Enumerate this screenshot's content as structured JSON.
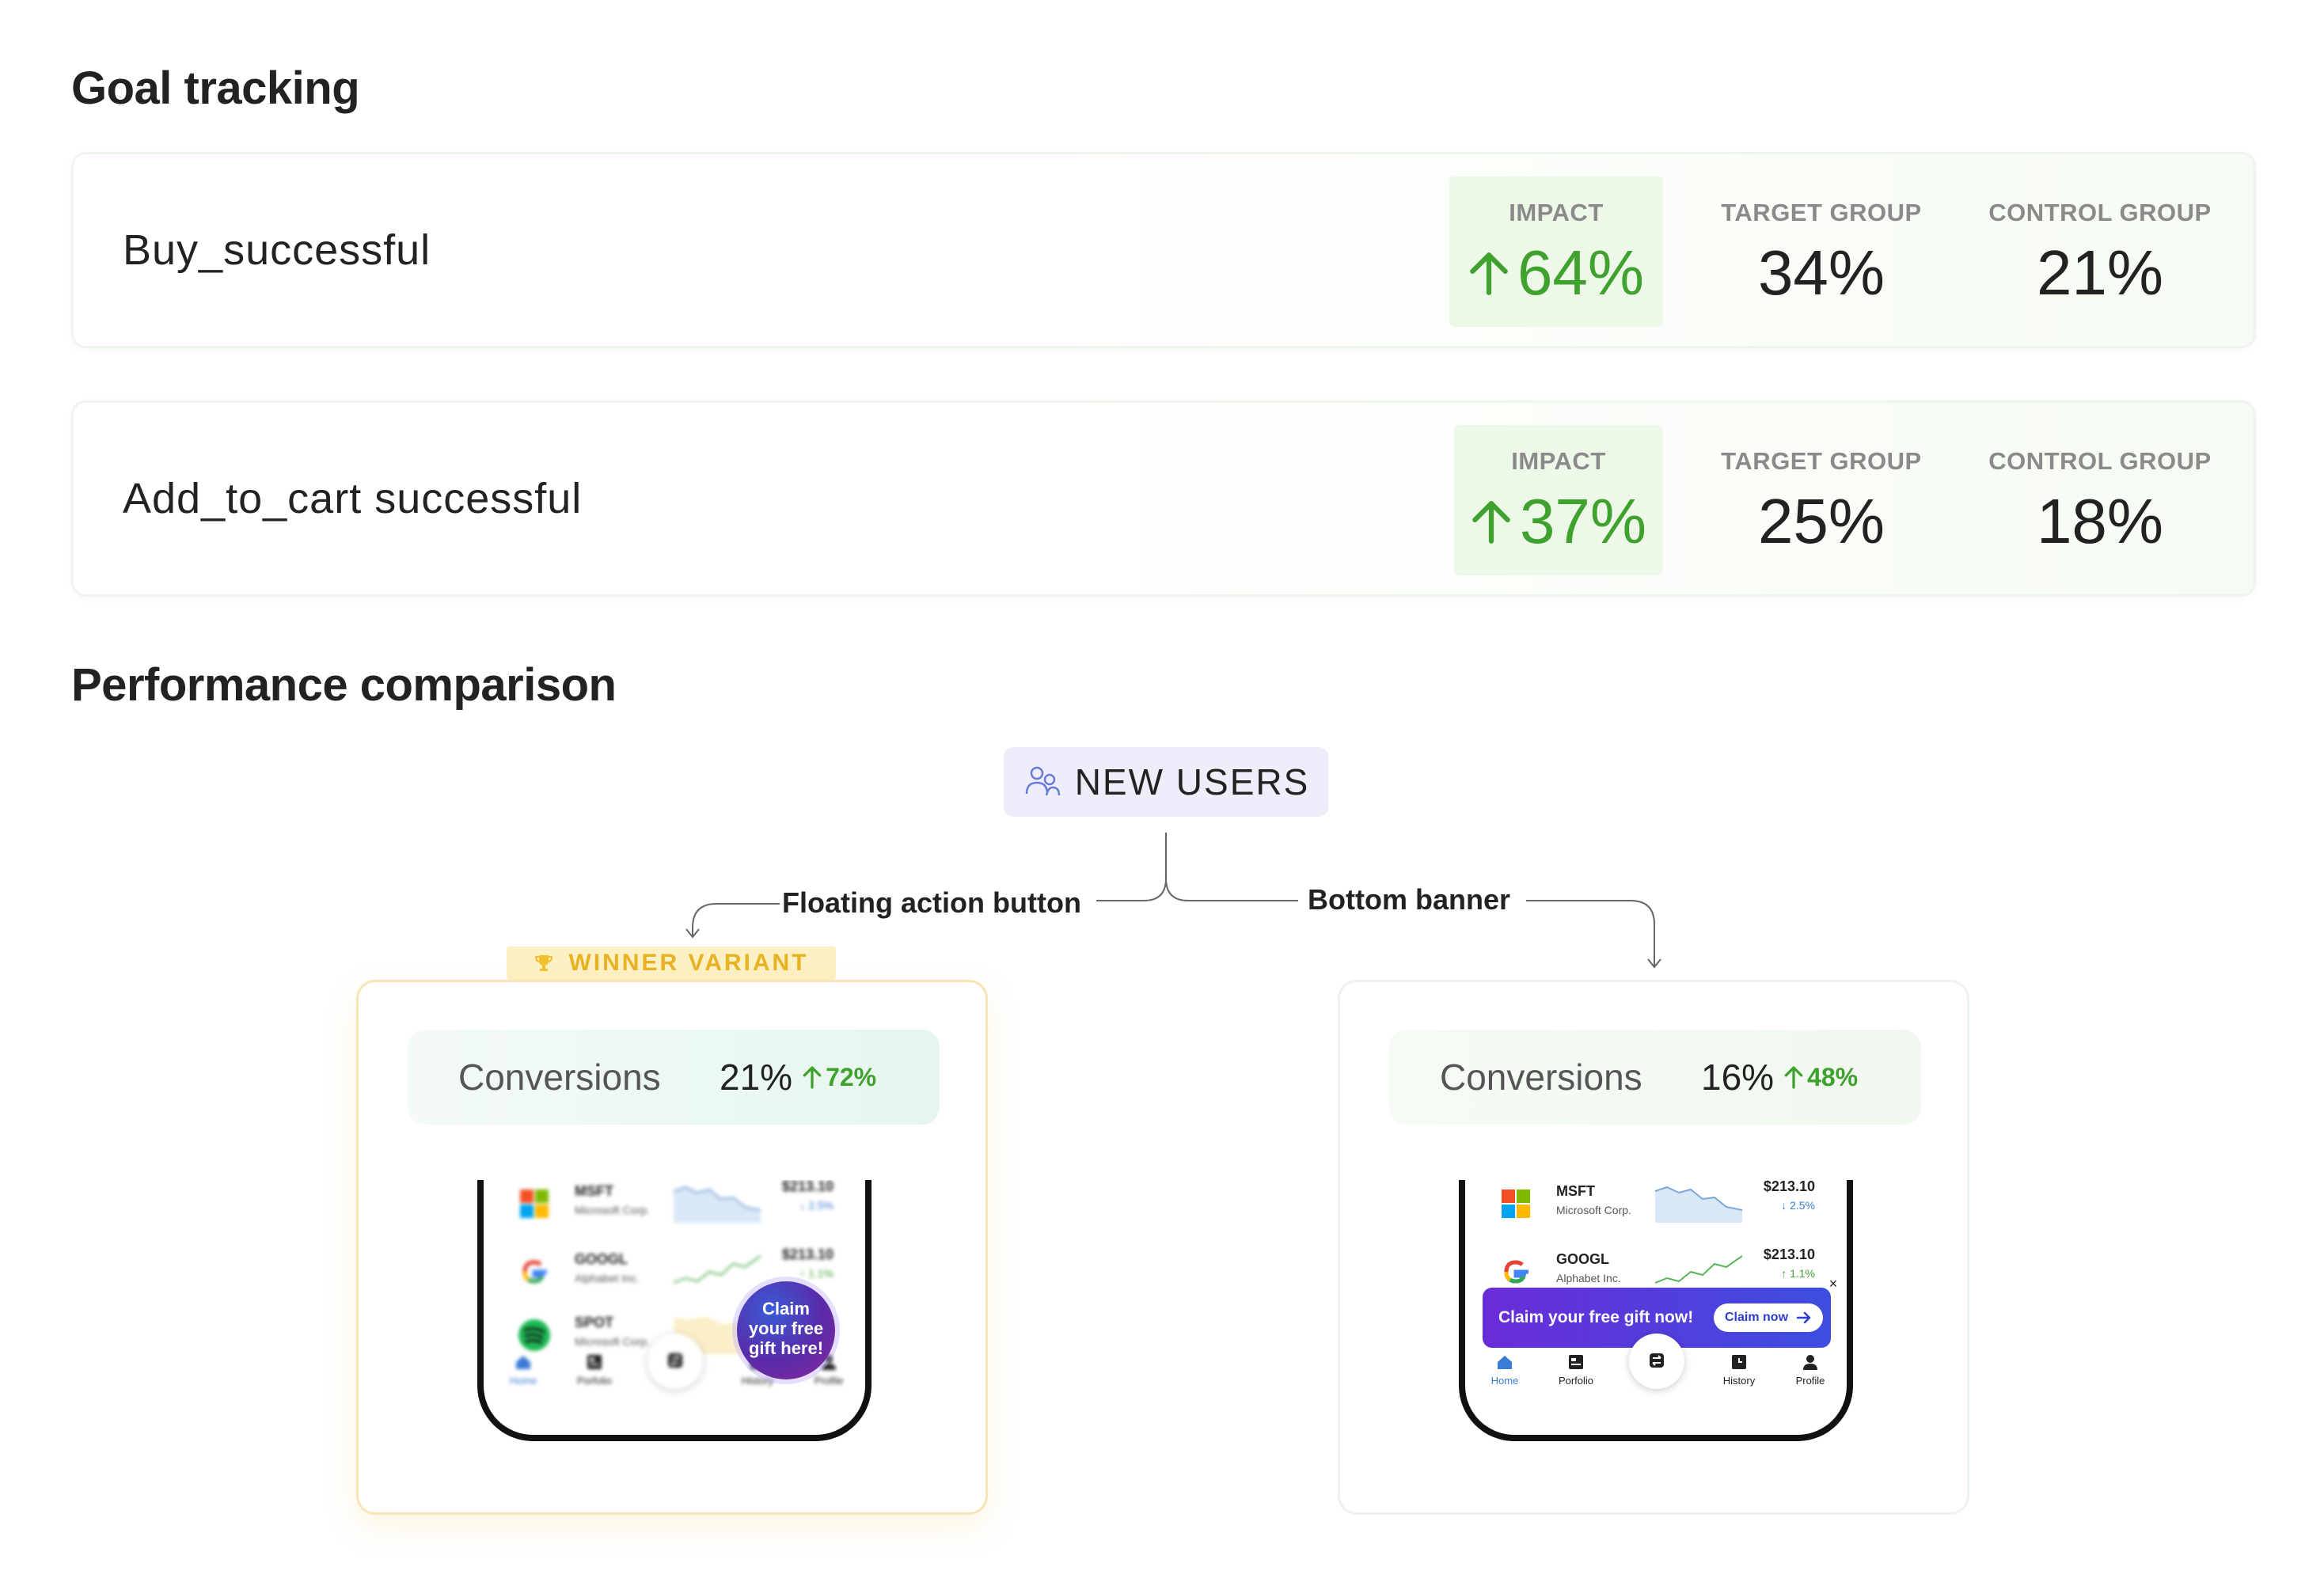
{
  "goal_tracking": {
    "title": "Goal tracking",
    "goals": [
      {
        "name": "Buy_successful",
        "impact_label": "IMPACT",
        "impact": "64%",
        "target_label": "TARGET GROUP",
        "target": "34%",
        "control_label": "CONTROL GROUP",
        "control": "21%"
      },
      {
        "name": "Add_to_cart successful",
        "impact_label": "IMPACT",
        "impact": "37%",
        "target_label": "TARGET GROUP",
        "target": "25%",
        "control_label": "CONTROL GROUP",
        "control": "18%"
      }
    ]
  },
  "performance": {
    "title": "Performance comparison",
    "segment": "NEW USERS",
    "segment_icon": "users-icon",
    "variants": [
      {
        "label": "Floating action button",
        "tag": "WINNER VARIANT",
        "conversions_label": "Conversions",
        "conversions": "21%",
        "uplift": "72%",
        "cta_text_1": "Claim",
        "cta_text_2": "your free",
        "cta_text_3": "gift here!"
      },
      {
        "label": "Bottom banner",
        "conversions_label": "Conversions",
        "conversions": "16%",
        "uplift": "48%",
        "banner_text": "Claim your free gift now!",
        "banner_button": "Claim now",
        "banner_close": "×"
      }
    ]
  },
  "phone_preview": {
    "stocks": [
      {
        "ticker": "MSFT",
        "company": "Microsoft Corp.",
        "price": "$213.10",
        "change": "2.5%",
        "direction": "down"
      },
      {
        "ticker": "GOOGL",
        "company": "Alphabet Inc.",
        "price": "$213.10",
        "change": "1.1%",
        "direction": "up"
      },
      {
        "ticker": "SPOT",
        "company": "Microsoft Corp.",
        "price": "",
        "change": "",
        "direction": ""
      }
    ],
    "tabs": [
      "Home",
      "Porfolio",
      "",
      "History",
      "Profile"
    ]
  },
  "colors": {
    "positive": "#3fa12e",
    "winner": "#e7b222",
    "segment_bg": "#eeeefb",
    "banner_from": "#6a2cd8",
    "banner_to": "#3d4ee0"
  }
}
